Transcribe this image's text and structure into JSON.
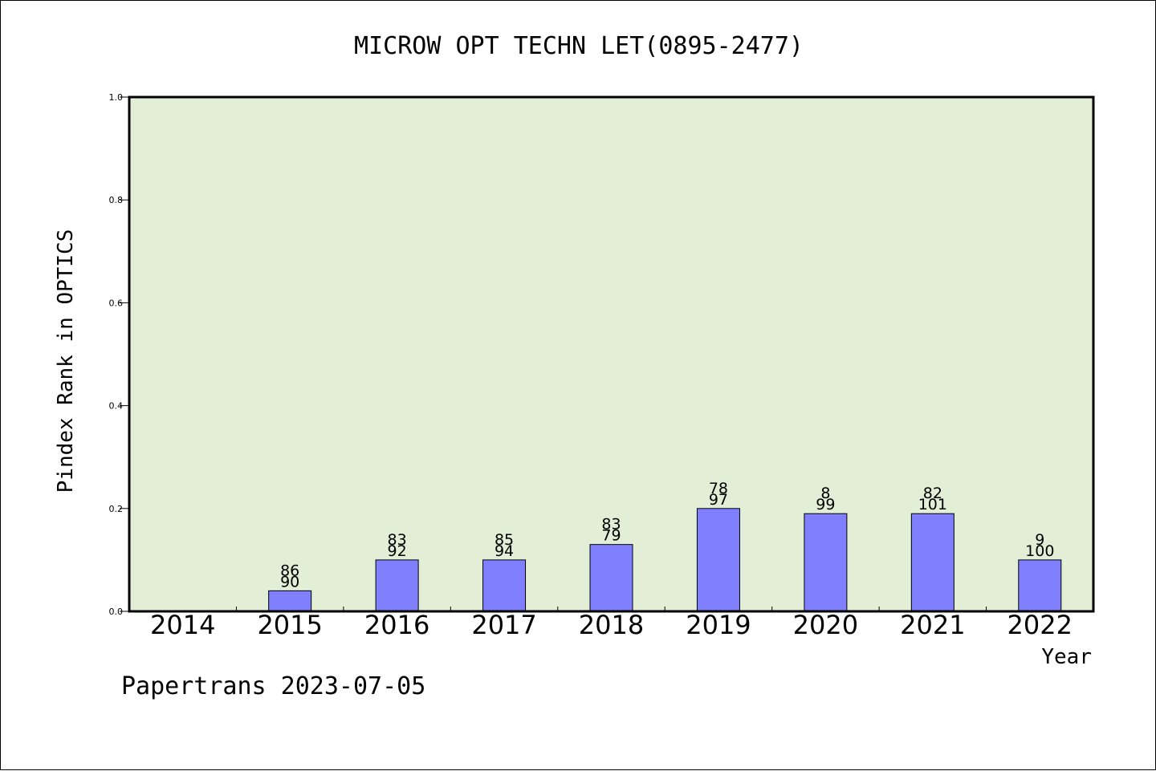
{
  "chart_data": {
    "type": "bar",
    "title": "MICROW OPT TECHN LET(0895-2477)",
    "xlabel": "Year",
    "ylabel": "Pindex Rank in OPTICS",
    "footer": "Papertrans 2023-07-05",
    "categories": [
      "2014",
      "2015",
      "2016",
      "2017",
      "2018",
      "2019",
      "2020",
      "2021",
      "2022"
    ],
    "values": [
      null,
      0.04,
      0.1,
      0.1,
      0.13,
      0.2,
      0.19,
      0.19,
      0.1
    ],
    "label_top": [
      "",
      "86",
      "83",
      "85",
      "83",
      "78",
      "8",
      "82",
      "9"
    ],
    "label_bottom": [
      "",
      "90",
      "92",
      "94",
      "79",
      "97",
      "99",
      "101",
      "100"
    ],
    "ylim": [
      0,
      1.0
    ],
    "yticks": [
      "0.0",
      "0.2",
      "0.4",
      "0.6",
      "0.8",
      "1.0"
    ],
    "grid": false,
    "colors": {
      "plot_background": "#e2efd6",
      "bar_fill": "#8080ff",
      "bar_stroke": "#000000"
    }
  }
}
